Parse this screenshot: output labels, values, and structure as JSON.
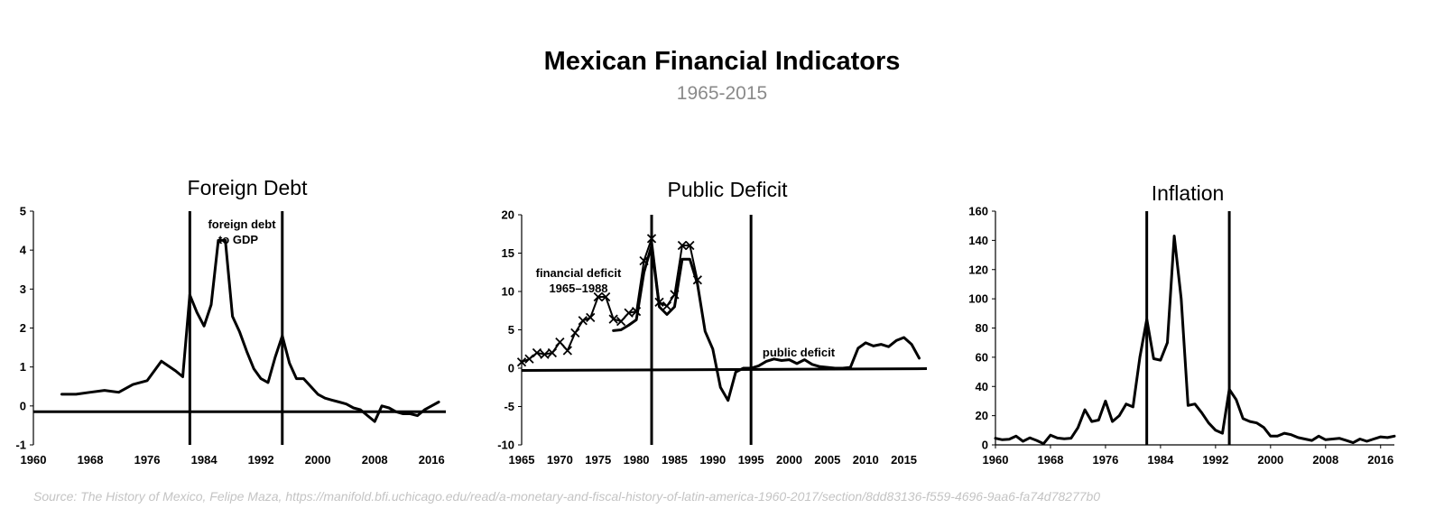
{
  "title": "Mexican Financial Indicators",
  "subtitle": "1965-2015",
  "source": "Source: The History of Mexico, Felipe Maza, https://manifold.bfi.uchicago.edu/read/a-monetary-and-fiscal-history-of-latin-america-1960-2017/section/8dd83136-f559-4696-9aa6-fa74d78277b0",
  "chart_data": [
    {
      "type": "line",
      "title": "Foreign Debt",
      "xlabel": "",
      "ylabel": "",
      "xlim": [
        1960,
        2018
      ],
      "ylim": [
        -1,
        5
      ],
      "xticks": [
        1960,
        1968,
        1976,
        1984,
        1992,
        2000,
        2008,
        2016
      ],
      "yticks": [
        -1,
        0,
        1,
        2,
        3,
        4,
        5
      ],
      "vlines": [
        1982,
        1995
      ],
      "baseline": -0.15,
      "annotations": [
        "foreign debt",
        "to GDP"
      ],
      "series": [
        {
          "x": [
            1964,
            1966,
            1968,
            1970,
            1972,
            1974,
            1976,
            1978,
            1980,
            1981,
            1982,
            1983,
            1984,
            1985,
            1986,
            1987,
            1988,
            1989,
            1990,
            1991,
            1992,
            1993,
            1994,
            1995,
            1996,
            1997,
            1998,
            1999,
            2000,
            2001,
            2002,
            2003,
            2004,
            2005,
            2006,
            2007,
            2008,
            2009,
            2010,
            2011,
            2012,
            2013,
            2014,
            2015,
            2016,
            2017
          ],
          "values": [
            0.3,
            0.3,
            0.35,
            0.4,
            0.35,
            0.55,
            0.65,
            1.15,
            0.9,
            0.75,
            2.85,
            2.4,
            2.05,
            2.6,
            4.25,
            4.25,
            2.3,
            1.9,
            1.4,
            0.95,
            0.7,
            0.6,
            1.25,
            1.8,
            1.1,
            0.7,
            0.7,
            0.5,
            0.3,
            0.2,
            0.15,
            0.1,
            0.05,
            -0.05,
            -0.1,
            -0.25,
            -0.4,
            0.0,
            -0.05,
            -0.15,
            -0.2,
            -0.2,
            -0.25,
            -0.1,
            0.0,
            0.1
          ]
        }
      ]
    },
    {
      "type": "line",
      "title": "Public Deficit",
      "xlabel": "",
      "ylabel": "",
      "xlim": [
        1965,
        2018
      ],
      "ylim": [
        -10,
        20
      ],
      "xticks": [
        1965,
        1970,
        1975,
        1980,
        1985,
        1990,
        1995,
        2000,
        2005,
        2010,
        2015
      ],
      "yticks": [
        -10,
        -5,
        0,
        5,
        10,
        15,
        20
      ],
      "vlines": [
        1982,
        1995
      ],
      "baseline": -0.3,
      "annotations": [
        "financial deficit",
        "1965–1988",
        "public deficit"
      ],
      "series": [
        {
          "name": "financial deficit",
          "marker": "x",
          "x": [
            1965,
            1966,
            1967,
            1968,
            1969,
            1970,
            1971,
            1972,
            1973,
            1974,
            1975,
            1976,
            1977,
            1978,
            1979,
            1980,
            1981,
            1982,
            1983,
            1984,
            1985,
            1986,
            1987,
            1988
          ],
          "values": [
            0.8,
            1.2,
            2.0,
            1.8,
            2.0,
            3.4,
            2.3,
            4.6,
            6.2,
            6.6,
            9.3,
            9.3,
            6.4,
            6.1,
            7.2,
            7.4,
            14.0,
            16.9,
            8.6,
            8.1,
            9.6,
            16.0,
            16.0,
            11.5
          ]
        },
        {
          "name": "public deficit",
          "x": [
            1977,
            1978,
            1979,
            1980,
            1981,
            1982,
            1983,
            1984,
            1985,
            1986,
            1987,
            1988,
            1989,
            1990,
            1991,
            1992,
            1993,
            1994,
            1995,
            1996,
            1997,
            1998,
            1999,
            2000,
            2001,
            2002,
            2003,
            2004,
            2005,
            2006,
            2007,
            2008,
            2009,
            2010,
            2011,
            2012,
            2013,
            2014,
            2015,
            2016,
            2017
          ],
          "values": [
            4.9,
            5.0,
            5.6,
            6.3,
            12.5,
            16.0,
            8.0,
            7.0,
            8.0,
            14.2,
            14.2,
            11.0,
            4.8,
            2.5,
            -2.5,
            -4.2,
            -0.5,
            0.0,
            0.0,
            0.3,
            0.9,
            1.2,
            1.0,
            1.1,
            0.6,
            1.1,
            0.5,
            0.2,
            0.1,
            0.0,
            0.0,
            0.1,
            2.6,
            3.3,
            2.9,
            3.1,
            2.8,
            3.6,
            4.0,
            3.1,
            1.3
          ]
        }
      ]
    },
    {
      "type": "line",
      "title": "Inflation",
      "xlabel": "",
      "ylabel": "",
      "xlim": [
        1960,
        2018
      ],
      "ylim": [
        0,
        160
      ],
      "xticks": [
        1960,
        1968,
        1976,
        1984,
        1992,
        2000,
        2008,
        2016
      ],
      "yticks": [
        0,
        20,
        40,
        60,
        80,
        100,
        120,
        140,
        160
      ],
      "vlines": [
        1982,
        1994
      ],
      "series": [
        {
          "x": [
            1960,
            1961,
            1962,
            1963,
            1964,
            1965,
            1966,
            1967,
            1968,
            1969,
            1970,
            1971,
            1972,
            1973,
            1974,
            1975,
            1976,
            1977,
            1978,
            1979,
            1980,
            1981,
            1982,
            1983,
            1984,
            1985,
            1986,
            1987,
            1988,
            1989,
            1990,
            1991,
            1992,
            1993,
            1994,
            1995,
            1996,
            1997,
            1998,
            1999,
            2000,
            2001,
            2002,
            2003,
            2004,
            2005,
            2006,
            2007,
            2008,
            2009,
            2010,
            2011,
            2012,
            2013,
            2014,
            2015,
            2016,
            2017,
            2018
          ],
          "values": [
            4.5,
            3.5,
            3.8,
            6.0,
            2.5,
            4.8,
            3.0,
            0.8,
            6.7,
            4.7,
            4.2,
            4.6,
            11.8,
            24.0,
            16.0,
            17.0,
            30.0,
            16.0,
            20.0,
            28.0,
            26.0,
            60.0,
            86.0,
            59.0,
            58.0,
            70.0,
            143.0,
            100.0,
            27.0,
            28.0,
            22.0,
            15.0,
            10.0,
            8.0,
            38.0,
            31.0,
            18.0,
            16.0,
            15.0,
            12.0,
            6.0,
            6.0,
            8.0,
            7.0,
            5.0,
            4.0,
            3.0,
            6.0,
            3.5,
            4.0,
            4.5,
            3.0,
            1.5,
            4.0,
            2.5,
            4.0,
            5.5,
            5.0,
            6.0
          ]
        }
      ]
    }
  ]
}
